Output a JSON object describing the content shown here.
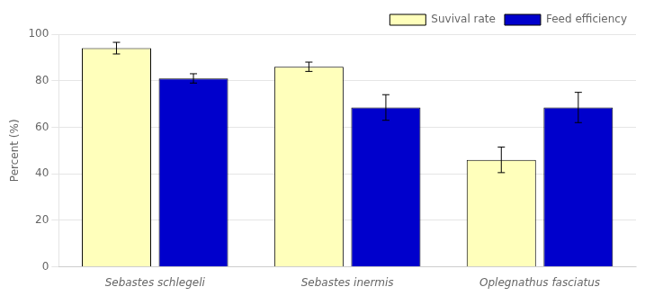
{
  "chart_data": {
    "type": "bar",
    "categories": [
      "Sebastes schlegeli",
      "Sebastes inermis",
      "Oplegnathus fasciatus"
    ],
    "series": [
      {
        "name": "Suvival rate",
        "color": "#FFFFBB",
        "values": [
          94.0,
          86.0,
          46.0
        ],
        "errors": [
          2.5,
          2.0,
          5.5
        ]
      },
      {
        "name": "Feed efficiency",
        "color": "#0000CC",
        "values": [
          81.0,
          68.5,
          68.5
        ],
        "errors": [
          2.0,
          5.5,
          6.5
        ]
      }
    ],
    "ylabel": "Percent (%)",
    "ylim": [
      0,
      100
    ],
    "yticks": [
      0,
      20,
      40,
      60,
      80,
      100
    ],
    "grid": true,
    "legend": "upper right"
  }
}
